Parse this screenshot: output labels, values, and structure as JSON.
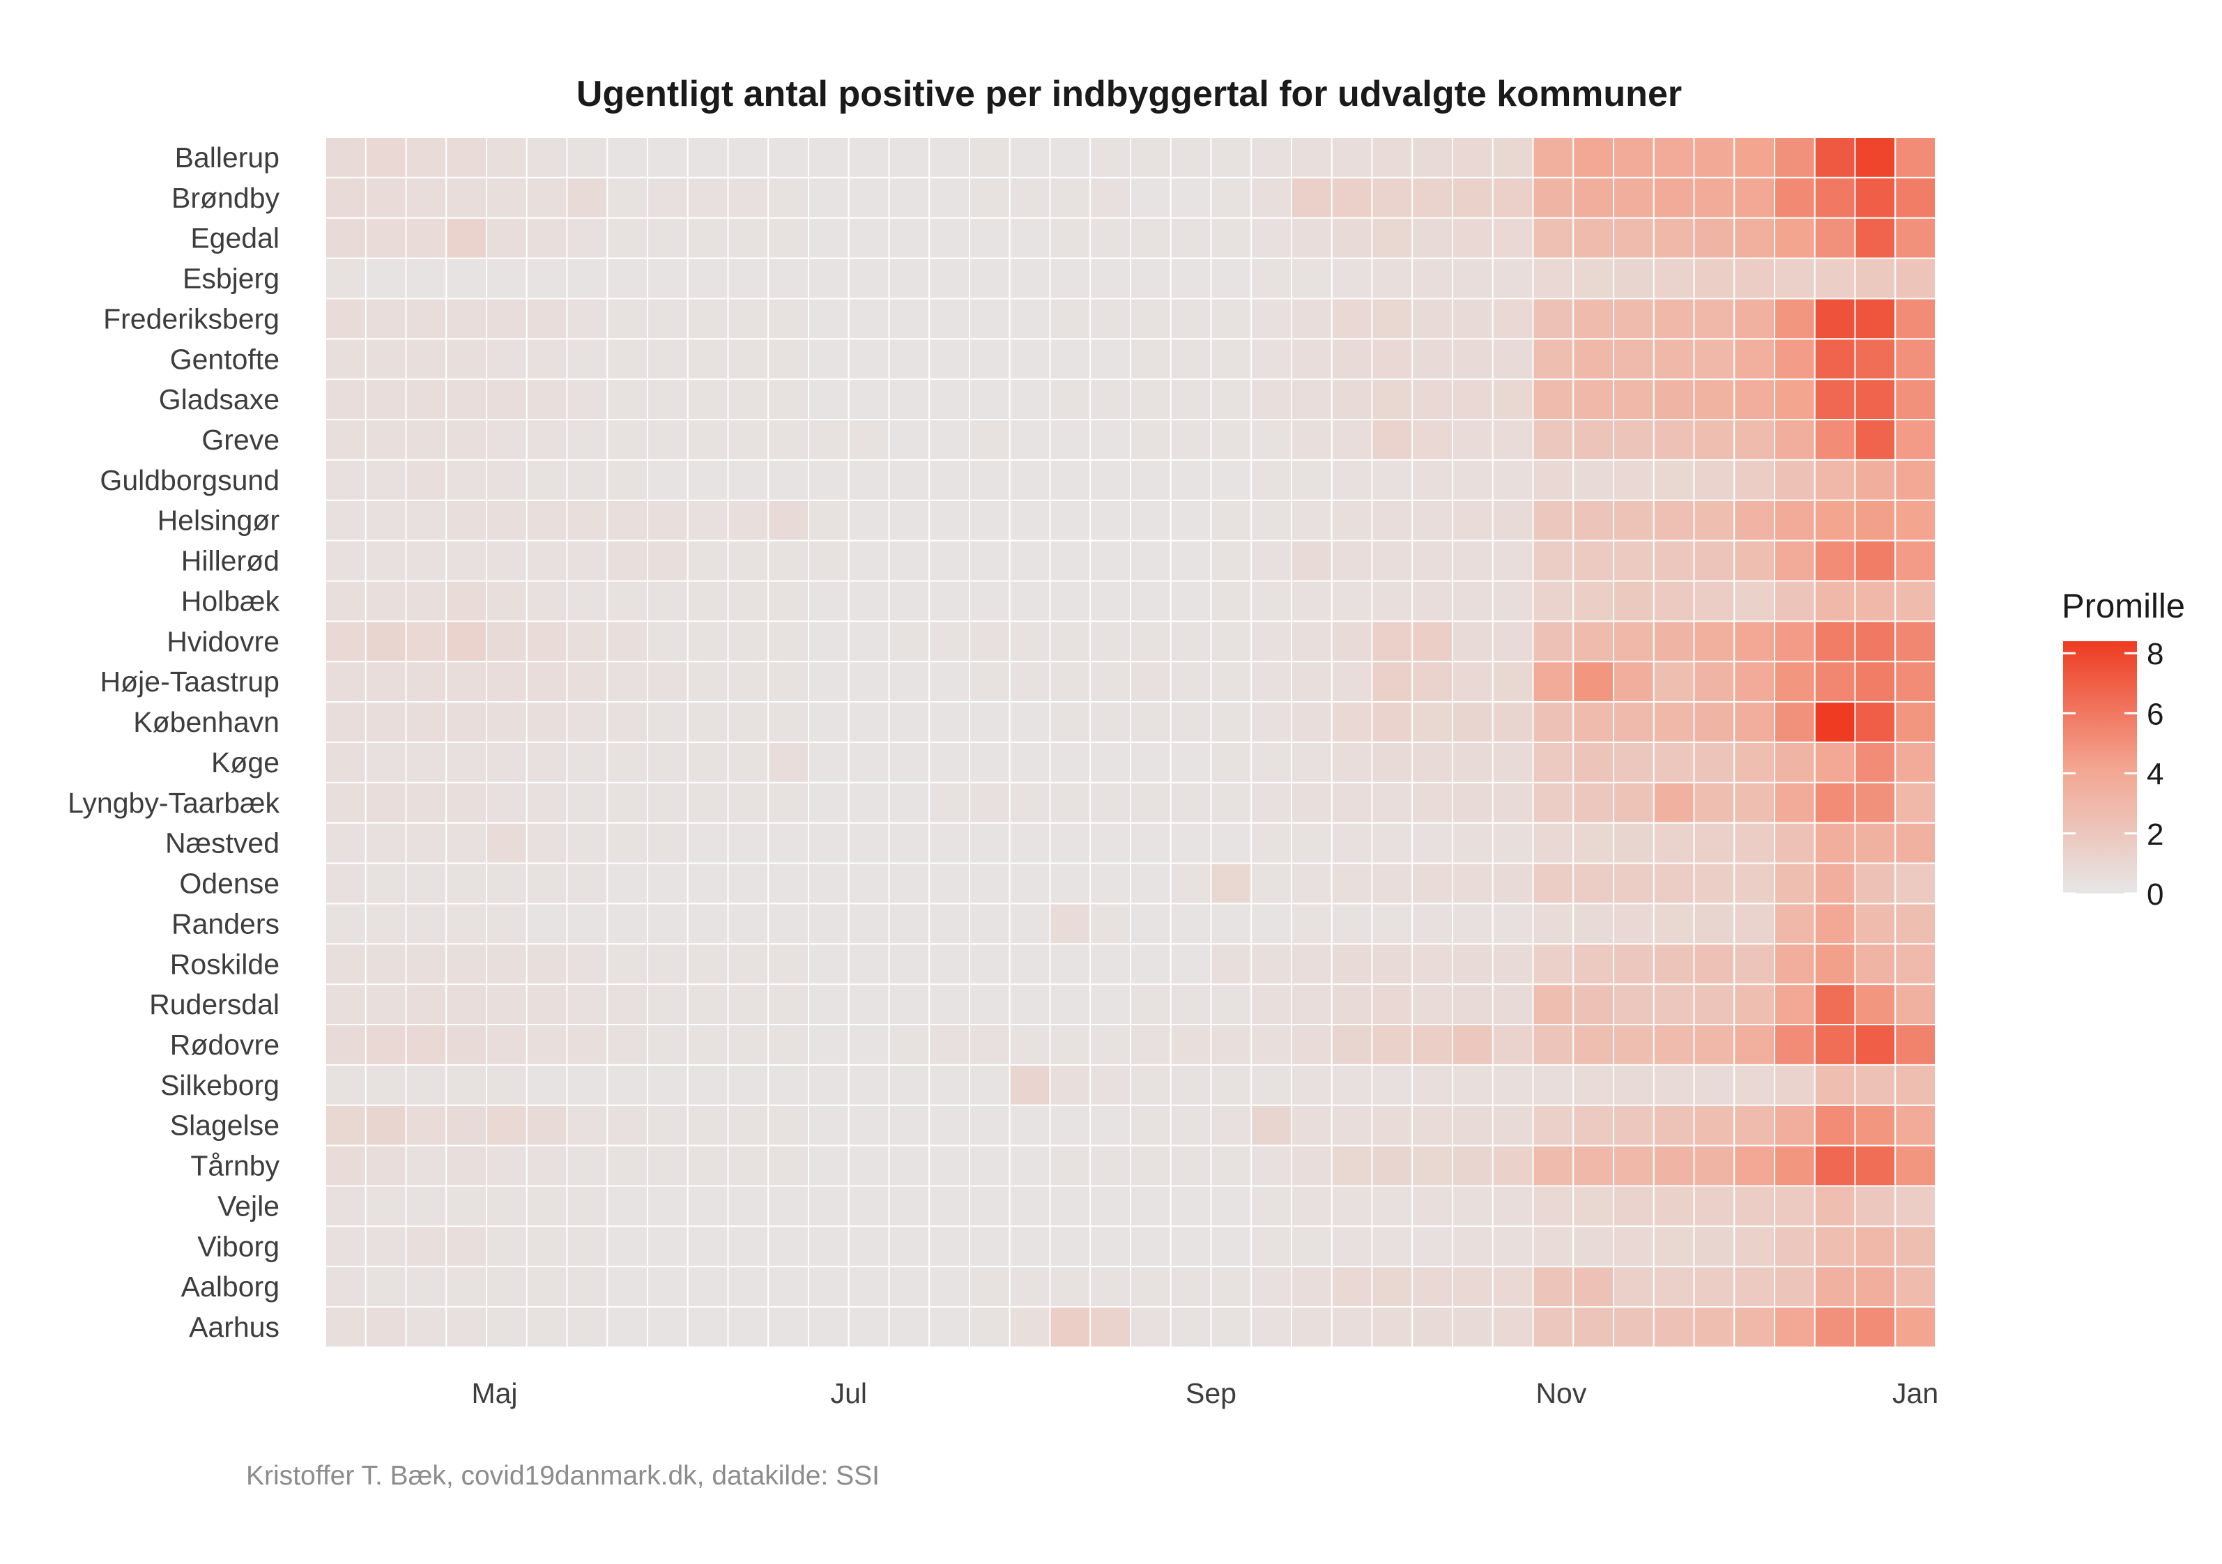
{
  "chart_data": {
    "type": "heatmap",
    "title": "Ugentligt antal positive per indbyggertal for udvalgte kommuner",
    "caption": "Kristoffer T. Bæk, covid19danmark.dk, datakilde: SSI",
    "x_tick_labels": [
      "Maj",
      "Jul",
      "Sep",
      "Nov",
      "Jan"
    ],
    "x_tick_week_index": [
      4.2,
      13,
      22,
      30.7,
      39.5
    ],
    "weeks": 40,
    "municipalities": [
      "Ballerup",
      "Brøndby",
      "Egedal",
      "Esbjerg",
      "Frederiksberg",
      "Gentofte",
      "Gladsaxe",
      "Greve",
      "Guldborgsund",
      "Helsingør",
      "Hillerød",
      "Holbæk",
      "Hvidovre",
      "Høje-Taastrup",
      "København",
      "Køge",
      "Lyngby-Taarbæk",
      "Næstved",
      "Odense",
      "Randers",
      "Roskilde",
      "Rudersdal",
      "Rødovre",
      "Silkeborg",
      "Slagelse",
      "Tårnby",
      "Vejle",
      "Viborg",
      "Aalborg",
      "Aarhus"
    ],
    "legend": {
      "title": "Promille",
      "ticks": [
        0,
        2,
        4,
        6,
        8
      ],
      "min": 0,
      "max": 8.4,
      "low_color": "#e6e6e6",
      "mid_color": "#f3a590",
      "high_color": "#ee3b22"
    },
    "values": [
      [
        0.8,
        0.9,
        0.7,
        0.7,
        0.5,
        0.4,
        0.3,
        0.2,
        0.2,
        0.2,
        0.2,
        0.2,
        0.2,
        0.2,
        0.2,
        0.2,
        0.3,
        0.2,
        0.2,
        0.3,
        0.3,
        0.3,
        0.3,
        0.4,
        0.5,
        0.6,
        0.7,
        0.8,
        0.9,
        1.0,
        3.5,
        4.0,
        3.8,
        3.8,
        3.9,
        4.2,
        5.0,
        7.2,
        8.0,
        5.2
      ],
      [
        0.8,
        0.7,
        0.6,
        0.6,
        0.5,
        0.5,
        0.8,
        0.3,
        0.4,
        0.4,
        0.4,
        0.3,
        0.2,
        0.2,
        0.2,
        0.2,
        0.3,
        0.3,
        0.3,
        0.4,
        0.2,
        0.2,
        0.3,
        0.5,
        1.4,
        1.4,
        1.2,
        1.2,
        1.3,
        1.4,
        3.2,
        3.6,
        3.6,
        3.8,
        3.8,
        4.0,
        5.3,
        6.0,
        7.0,
        5.8
      ],
      [
        0.8,
        0.7,
        0.7,
        1.2,
        0.6,
        0.5,
        0.4,
        0.3,
        0.3,
        0.3,
        0.3,
        0.3,
        0.2,
        0.2,
        0.2,
        0.2,
        0.2,
        0.2,
        0.3,
        0.3,
        0.3,
        0.3,
        0.3,
        0.4,
        0.6,
        0.8,
        1.0,
        0.8,
        0.9,
        0.9,
        2.5,
        2.8,
        2.8,
        3.0,
        3.2,
        3.5,
        4.2,
        5.0,
        6.8,
        5.0
      ],
      [
        0.3,
        0.2,
        0.2,
        0.2,
        0.2,
        0.2,
        0.2,
        0.2,
        0.2,
        0.2,
        0.2,
        0.2,
        0.2,
        0.2,
        0.2,
        0.2,
        0.2,
        0.2,
        0.2,
        0.2,
        0.2,
        0.2,
        0.2,
        0.3,
        0.3,
        0.4,
        0.5,
        0.6,
        0.6,
        0.6,
        0.9,
        1.0,
        1.1,
        1.2,
        1.5,
        1.6,
        1.4,
        1.5,
        1.9,
        2.2
      ],
      [
        0.7,
        0.6,
        0.6,
        0.6,
        0.6,
        0.6,
        0.4,
        0.3,
        0.3,
        0.3,
        0.3,
        0.3,
        0.2,
        0.2,
        0.2,
        0.2,
        0.2,
        0.2,
        0.3,
        0.3,
        0.3,
        0.3,
        0.3,
        0.4,
        0.6,
        0.9,
        1.0,
        0.8,
        0.8,
        0.9,
        2.4,
        2.8,
        2.8,
        3.0,
        3.0,
        3.4,
        4.8,
        7.5,
        7.4,
        5.2
      ],
      [
        0.5,
        0.5,
        0.5,
        0.5,
        0.4,
        0.4,
        0.3,
        0.3,
        0.3,
        0.3,
        0.3,
        0.3,
        0.2,
        0.2,
        0.2,
        0.2,
        0.2,
        0.2,
        0.2,
        0.2,
        0.3,
        0.3,
        0.3,
        0.4,
        0.6,
        0.8,
        0.9,
        0.8,
        0.8,
        0.8,
        2.6,
        3.0,
        2.9,
        3.0,
        3.0,
        3.5,
        4.5,
        6.8,
        6.4,
        5.0
      ],
      [
        0.6,
        0.6,
        0.6,
        0.6,
        0.6,
        0.5,
        0.4,
        0.3,
        0.3,
        0.3,
        0.3,
        0.3,
        0.2,
        0.2,
        0.2,
        0.2,
        0.2,
        0.2,
        0.3,
        0.3,
        0.3,
        0.3,
        0.3,
        0.5,
        0.6,
        0.8,
        1.0,
        0.9,
        0.9,
        1.0,
        2.8,
        3.0,
        3.0,
        3.2,
        3.3,
        3.6,
        4.2,
        6.6,
        6.8,
        5.0
      ],
      [
        0.5,
        0.5,
        0.5,
        0.5,
        0.4,
        0.4,
        0.3,
        0.3,
        0.3,
        0.3,
        0.3,
        0.3,
        0.3,
        0.3,
        0.2,
        0.2,
        0.3,
        0.2,
        0.2,
        0.2,
        0.3,
        0.3,
        0.3,
        0.3,
        0.5,
        0.6,
        1.2,
        0.9,
        0.7,
        0.7,
        2.0,
        2.2,
        2.2,
        2.4,
        2.6,
        2.8,
        3.6,
        5.2,
        6.8,
        4.6
      ],
      [
        0.4,
        0.4,
        0.5,
        0.4,
        0.4,
        0.3,
        0.3,
        0.3,
        0.2,
        0.2,
        0.2,
        0.2,
        0.2,
        0.2,
        0.2,
        0.2,
        0.2,
        0.2,
        0.2,
        0.2,
        0.2,
        0.2,
        0.2,
        0.3,
        0.3,
        0.4,
        0.4,
        0.5,
        0.5,
        0.5,
        0.9,
        0.8,
        0.9,
        1.0,
        1.2,
        1.6,
        2.4,
        3.0,
        3.6,
        4.0
      ],
      [
        0.4,
        0.4,
        0.4,
        0.5,
        0.5,
        0.5,
        0.5,
        0.5,
        0.5,
        0.4,
        0.5,
        0.8,
        0.3,
        0.2,
        0.2,
        0.2,
        0.2,
        0.2,
        0.2,
        0.2,
        0.2,
        0.2,
        0.3,
        0.3,
        0.4,
        0.5,
        0.6,
        0.6,
        0.7,
        0.8,
        2.0,
        2.2,
        2.3,
        2.5,
        2.6,
        3.2,
        3.8,
        4.2,
        4.4,
        4.2
      ],
      [
        0.4,
        0.4,
        0.4,
        0.4,
        0.4,
        0.4,
        0.4,
        0.5,
        0.5,
        0.3,
        0.3,
        0.3,
        0.3,
        0.2,
        0.2,
        0.2,
        0.2,
        0.2,
        0.2,
        0.2,
        0.2,
        0.2,
        0.3,
        0.4,
        0.8,
        0.6,
        0.6,
        0.6,
        0.6,
        0.6,
        1.6,
        1.8,
        1.8,
        2.0,
        2.2,
        2.6,
        3.8,
        5.2,
        5.8,
        4.6
      ],
      [
        0.5,
        0.5,
        0.5,
        0.7,
        0.5,
        0.4,
        0.3,
        0.3,
        0.3,
        0.3,
        0.3,
        0.3,
        0.2,
        0.2,
        0.2,
        0.2,
        0.2,
        0.2,
        0.2,
        0.2,
        0.2,
        0.2,
        0.3,
        0.3,
        0.4,
        0.4,
        0.5,
        0.6,
        0.6,
        0.6,
        1.2,
        1.5,
        1.9,
        1.8,
        1.6,
        1.3,
        2.2,
        3.0,
        3.0,
        2.8
      ],
      [
        0.9,
        1.1,
        0.9,
        1.2,
        0.8,
        0.7,
        0.5,
        0.5,
        0.3,
        0.3,
        0.3,
        0.3,
        0.2,
        0.2,
        0.3,
        0.3,
        0.4,
        0.3,
        0.3,
        0.3,
        0.3,
        0.3,
        0.3,
        0.4,
        0.5,
        0.8,
        1.4,
        1.5,
        0.8,
        0.8,
        2.4,
        2.8,
        3.0,
        3.2,
        3.5,
        4.0,
        4.6,
        5.8,
        6.0,
        5.4
      ],
      [
        0.6,
        0.6,
        0.6,
        0.6,
        0.6,
        0.6,
        0.5,
        0.4,
        0.4,
        0.3,
        0.3,
        0.3,
        0.2,
        0.2,
        0.2,
        0.2,
        0.3,
        0.3,
        0.3,
        0.3,
        0.4,
        0.3,
        0.3,
        0.4,
        0.5,
        0.6,
        1.4,
        1.2,
        0.9,
        1.0,
        3.8,
        4.8,
        3.6,
        2.6,
        3.2,
        3.8,
        4.8,
        5.4,
        5.8,
        5.2
      ],
      [
        0.6,
        0.6,
        0.6,
        0.6,
        0.5,
        0.5,
        0.4,
        0.4,
        0.3,
        0.3,
        0.3,
        0.3,
        0.2,
        0.2,
        0.2,
        0.2,
        0.2,
        0.2,
        0.3,
        0.3,
        0.3,
        0.3,
        0.3,
        0.4,
        0.6,
        0.9,
        1.2,
        1.0,
        1.1,
        1.1,
        2.4,
        2.8,
        2.9,
        3.0,
        3.2,
        3.6,
        5.0,
        8.4,
        7.0,
        4.8
      ],
      [
        0.5,
        0.4,
        0.4,
        0.4,
        0.4,
        0.4,
        0.3,
        0.3,
        0.3,
        0.3,
        0.3,
        0.6,
        0.2,
        0.2,
        0.2,
        0.2,
        0.2,
        0.2,
        0.2,
        0.2,
        0.2,
        0.2,
        0.3,
        0.3,
        0.4,
        0.6,
        0.8,
        0.8,
        0.8,
        0.8,
        1.8,
        2.2,
        2.0,
        2.0,
        2.2,
        2.6,
        3.2,
        4.0,
        5.2,
        3.8
      ],
      [
        0.5,
        0.6,
        0.5,
        0.5,
        0.4,
        0.4,
        0.3,
        0.3,
        0.3,
        0.3,
        0.3,
        0.3,
        0.2,
        0.2,
        0.2,
        0.3,
        0.4,
        0.3,
        0.3,
        0.3,
        0.3,
        0.3,
        0.3,
        0.4,
        0.5,
        0.6,
        0.6,
        0.7,
        0.8,
        0.8,
        1.6,
        2.0,
        2.3,
        3.4,
        2.6,
        2.6,
        3.8,
        5.2,
        5.0,
        3.0
      ],
      [
        0.4,
        0.4,
        0.4,
        0.4,
        0.7,
        0.4,
        0.3,
        0.3,
        0.3,
        0.2,
        0.2,
        0.2,
        0.2,
        0.2,
        0.2,
        0.2,
        0.2,
        0.2,
        0.2,
        0.2,
        0.2,
        0.2,
        0.2,
        0.3,
        0.3,
        0.4,
        0.4,
        0.4,
        0.5,
        0.5,
        0.9,
        1.0,
        1.1,
        1.2,
        1.4,
        1.6,
        2.4,
        3.6,
        3.4,
        3.4
      ],
      [
        0.4,
        0.3,
        0.3,
        0.3,
        0.3,
        0.3,
        0.3,
        0.2,
        0.2,
        0.2,
        0.2,
        0.2,
        0.2,
        0.2,
        0.2,
        0.2,
        0.2,
        0.2,
        0.2,
        0.2,
        0.2,
        0.3,
        1.0,
        0.3,
        0.4,
        0.5,
        0.6,
        0.7,
        0.7,
        0.8,
        1.6,
        1.6,
        1.6,
        1.6,
        1.5,
        1.5,
        2.6,
        3.6,
        2.4,
        1.8
      ],
      [
        0.3,
        0.3,
        0.3,
        0.3,
        0.3,
        0.2,
        0.2,
        0.2,
        0.2,
        0.2,
        0.2,
        0.2,
        0.2,
        0.2,
        0.2,
        0.2,
        0.2,
        0.2,
        0.7,
        0.3,
        0.2,
        0.2,
        0.2,
        0.2,
        0.3,
        0.3,
        0.3,
        0.4,
        0.4,
        0.4,
        0.7,
        0.8,
        0.9,
        1.0,
        1.1,
        1.2,
        3.0,
        4.0,
        2.8,
        2.6
      ],
      [
        0.5,
        0.5,
        0.5,
        0.5,
        0.5,
        0.5,
        0.4,
        0.3,
        0.3,
        0.3,
        0.3,
        0.3,
        0.2,
        0.2,
        0.2,
        0.2,
        0.2,
        0.2,
        0.2,
        0.2,
        0.2,
        0.2,
        0.5,
        0.5,
        0.6,
        0.8,
        0.8,
        0.7,
        0.8,
        0.8,
        1.4,
        1.8,
        2.0,
        2.2,
        2.4,
        2.2,
        3.6,
        4.4,
        3.2,
        2.9
      ],
      [
        0.5,
        0.5,
        0.6,
        0.6,
        0.5,
        0.5,
        0.4,
        0.4,
        0.3,
        0.3,
        0.3,
        0.3,
        0.2,
        0.2,
        0.2,
        0.2,
        0.2,
        0.2,
        0.2,
        0.2,
        0.3,
        0.3,
        0.3,
        0.5,
        0.6,
        0.8,
        0.9,
        0.7,
        0.8,
        0.8,
        2.6,
        2.4,
        2.0,
        2.0,
        2.2,
        2.6,
        4.0,
        6.4,
        4.8,
        3.4
      ],
      [
        0.8,
        0.9,
        0.9,
        0.8,
        0.6,
        0.5,
        0.5,
        0.4,
        0.3,
        0.3,
        0.3,
        0.3,
        0.2,
        0.2,
        0.3,
        0.4,
        0.4,
        0.3,
        0.3,
        0.3,
        0.4,
        0.5,
        0.5,
        0.5,
        0.7,
        1.1,
        1.3,
        1.5,
        2.0,
        1.2,
        2.2,
        2.6,
        2.6,
        2.8,
        3.0,
        3.5,
        5.2,
        6.4,
        7.0,
        5.6
      ],
      [
        0.3,
        0.3,
        0.3,
        0.3,
        0.3,
        0.2,
        0.2,
        0.2,
        0.2,
        0.2,
        0.2,
        0.2,
        0.2,
        0.2,
        0.2,
        0.2,
        0.2,
        1.1,
        0.5,
        0.4,
        0.3,
        0.3,
        0.3,
        0.3,
        0.4,
        0.4,
        0.4,
        0.5,
        0.5,
        0.5,
        0.6,
        0.7,
        0.8,
        0.8,
        0.8,
        0.9,
        1.2,
        2.6,
        2.4,
        2.6
      ],
      [
        1.0,
        1.1,
        0.7,
        0.8,
        0.9,
        0.8,
        0.4,
        0.4,
        0.3,
        0.3,
        0.3,
        0.3,
        0.2,
        0.2,
        0.2,
        0.2,
        0.2,
        0.2,
        0.2,
        0.2,
        0.3,
        0.3,
        0.4,
        1.1,
        0.6,
        0.6,
        0.7,
        0.7,
        0.8,
        0.8,
        1.4,
        1.8,
        2.0,
        2.3,
        2.6,
        2.8,
        3.6,
        5.2,
        4.8,
        3.8
      ],
      [
        0.7,
        0.6,
        0.4,
        0.5,
        0.4,
        0.4,
        0.3,
        0.3,
        0.3,
        0.3,
        0.3,
        0.3,
        0.2,
        0.2,
        0.2,
        0.2,
        0.2,
        0.2,
        0.3,
        0.3,
        0.3,
        0.3,
        0.3,
        0.4,
        0.6,
        1.0,
        1.1,
        1.0,
        1.1,
        1.3,
        2.8,
        3.0,
        3.0,
        3.2,
        3.2,
        4.0,
        4.8,
        6.6,
        6.4,
        4.8
      ],
      [
        0.4,
        0.3,
        0.3,
        0.3,
        0.3,
        0.3,
        0.3,
        0.2,
        0.2,
        0.2,
        0.2,
        0.2,
        0.2,
        0.2,
        0.2,
        0.2,
        0.2,
        0.2,
        0.2,
        0.2,
        0.2,
        0.2,
        0.2,
        0.3,
        0.4,
        0.4,
        0.4,
        0.5,
        0.5,
        0.6,
        0.9,
        1.0,
        1.2,
        1.3,
        1.4,
        1.6,
        1.8,
        2.6,
        2.0,
        1.6
      ],
      [
        0.4,
        0.4,
        0.5,
        0.5,
        0.3,
        0.3,
        0.3,
        0.2,
        0.2,
        0.2,
        0.2,
        0.2,
        0.2,
        0.2,
        0.2,
        0.2,
        0.2,
        0.2,
        0.2,
        0.2,
        0.2,
        0.2,
        0.2,
        0.3,
        0.3,
        0.4,
        0.4,
        0.4,
        0.5,
        0.5,
        0.7,
        0.8,
        0.9,
        1.0,
        1.1,
        1.3,
        2.0,
        2.6,
        3.0,
        2.6
      ],
      [
        0.4,
        0.3,
        0.3,
        0.3,
        0.3,
        0.3,
        0.3,
        0.2,
        0.2,
        0.2,
        0.2,
        0.2,
        0.2,
        0.2,
        0.2,
        0.2,
        0.3,
        0.3,
        0.3,
        0.3,
        0.3,
        0.3,
        0.3,
        0.4,
        0.6,
        0.9,
        1.0,
        0.9,
        0.9,
        0.9,
        2.2,
        2.4,
        1.4,
        1.4,
        1.6,
        1.8,
        2.2,
        3.4,
        3.6,
        2.8
      ],
      [
        0.5,
        0.6,
        0.4,
        0.4,
        0.3,
        0.3,
        0.3,
        0.2,
        0.2,
        0.2,
        0.2,
        0.2,
        0.2,
        0.2,
        0.2,
        0.2,
        0.3,
        0.5,
        1.5,
        1.2,
        0.4,
        0.3,
        0.3,
        0.4,
        0.5,
        0.6,
        0.7,
        0.8,
        0.8,
        0.9,
        2.0,
        2.2,
        2.2,
        2.4,
        2.6,
        3.0,
        4.0,
        5.0,
        5.2,
        4.2
      ]
    ]
  }
}
